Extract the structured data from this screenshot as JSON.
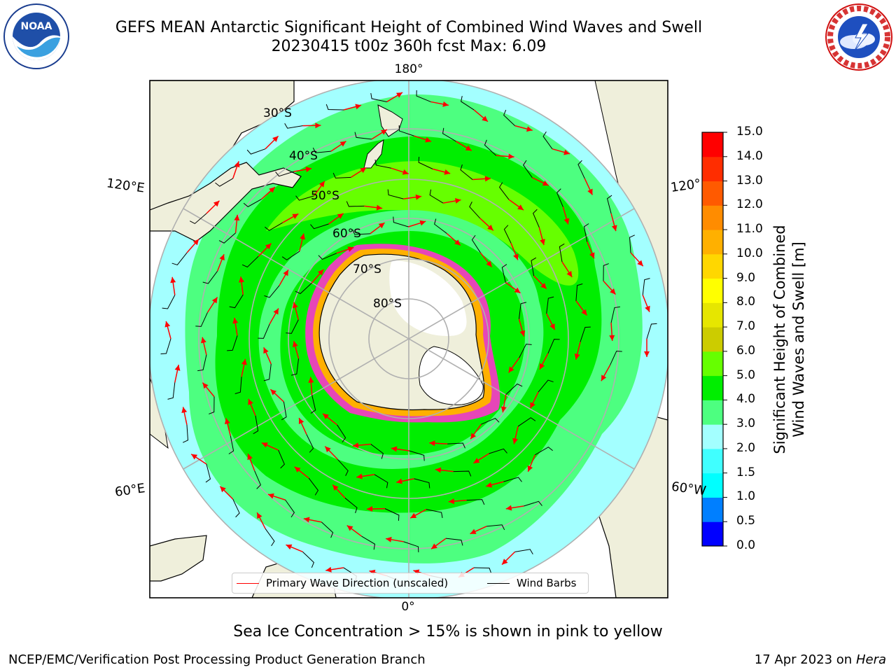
{
  "header": {
    "title_line1": "GEFS MEAN Antarctic Significant Height of Combined Wind Waves and Swell",
    "title_line2": "20230415 t00z 360h fcst   Max: 6.09",
    "left_logo": "NOAA",
    "right_logo": "NATIONAL WEATHER SERVICE"
  },
  "map": {
    "projection": "south-polar-stereographic",
    "meridian_labels": {
      "top": "180°",
      "upper_left": "120°E",
      "upper_right": "120°",
      "lower_left": "60°E",
      "lower_right": "60°W",
      "bottom": "0°"
    },
    "latitude_labels": [
      "30°S",
      "40°S",
      "50°S",
      "60°S",
      "70°S",
      "80°S"
    ],
    "colors": {
      "land": "#efefdb",
      "ice_land": "#ffffff",
      "ocean_25": "#a3ffff",
      "ocean_35": "#4dff80",
      "ocean_45": "#00ee00",
      "ocean_55": "#66ff00",
      "sea_ice_edge": "#ff33cc",
      "gridline": "#b0b0b0",
      "arrow": "#ff0000",
      "barb": "#000000"
    }
  },
  "legend": {
    "primary_wave_direction": "Primary Wave Direction (unscaled)",
    "wind_barbs": "Wind Barbs"
  },
  "colorbar": {
    "title_line1": "Significant Height of Combined",
    "title_line2": "Wind Waves and Swell [m]",
    "ticks": [
      "15.0",
      "14.0",
      "13.0",
      "12.0",
      "11.0",
      "10.0",
      "9.0",
      "8.0",
      "7.0",
      "6.0",
      "5.0",
      "4.0",
      "3.0",
      "2.0",
      "1.5",
      "1.0",
      "0.5",
      "0.0"
    ],
    "colors": [
      "#0000ff",
      "#007fff",
      "#00ffff",
      "#40ffff",
      "#a3ffff",
      "#4dff80",
      "#00ee00",
      "#66ff00",
      "#cccc00",
      "#e6e600",
      "#ffff00",
      "#ffd700",
      "#ffb000",
      "#ff8c00",
      "#ff5a00",
      "#ff2d00",
      "#ff0000"
    ]
  },
  "note": "Sea Ice Concentration > 15% is shown in pink to yellow",
  "footer": {
    "left": "NCEP/EMC/Verification Post Processing Product Generation Branch",
    "right_date": "17 Apr 2023 on ",
    "right_host": "Hera"
  }
}
